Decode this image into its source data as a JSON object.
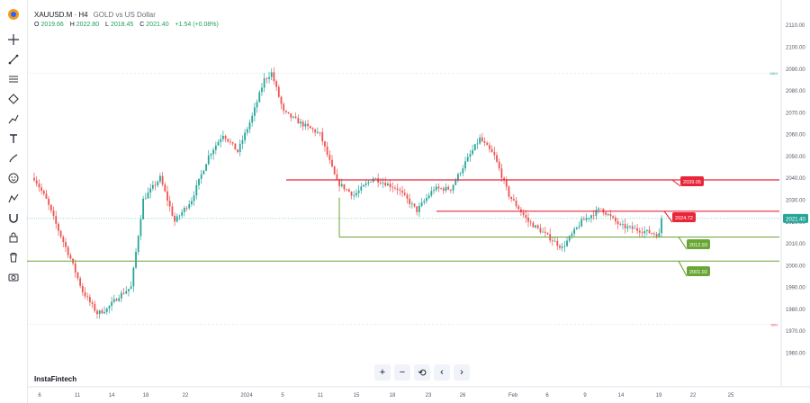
{
  "header": {
    "symbol": "XAUUSD.M · H4",
    "description": "GOLD vs US Dollar",
    "ohlc": {
      "o_label": "O",
      "o_value": "2019.66",
      "h_label": "H",
      "h_value": "2022.80",
      "l_label": "L",
      "l_value": "2018.45",
      "c_label": "C",
      "c_value": "2021.40",
      "change": "+1.54 (+0.08%)"
    }
  },
  "brand": "InstaFintech",
  "toolbar": {
    "icons": [
      "logo-icon",
      "crosshair-icon",
      "trend-line-icon",
      "fib-icon",
      "pattern-icon",
      "forecast-icon",
      "text-icon",
      "brush-icon",
      "emoji-icon",
      "measure-icon",
      "magnet-icon",
      "lock-drawing-icon",
      "trash-icon",
      "screenshot-icon"
    ]
  },
  "nav": {
    "zoom_in": "+",
    "zoom_out": "−",
    "reset": "⟲",
    "prev": "‹",
    "next": "›"
  },
  "colors": {
    "up": "#26a69a",
    "down": "#ef5350",
    "resistance": "#e8263a",
    "support": "#6aa636",
    "price": "#26a69a"
  },
  "chart_data": {
    "type": "candlestick",
    "y_ticks": [
      "2110.00",
      "2100.00",
      "2090.00",
      "2080.00",
      "2070.00",
      "2060.00",
      "2050.00",
      "2040.00",
      "2030.00",
      "2020.00",
      "2010.00",
      "2000.00",
      "1990.00",
      "1980.00",
      "1970.00",
      "1960.00"
    ],
    "ylim": [
      1960,
      2114
    ],
    "x_ticks": [
      "6",
      "11",
      "14",
      "18",
      "22",
      "2024",
      "5",
      "11",
      "15",
      "18",
      "23",
      "26",
      "Feb",
      "6",
      "9",
      "14",
      "19",
      "22",
      "25"
    ],
    "levels": [
      {
        "label": "2039.05",
        "value": 2039.05,
        "kind": "resistance"
      },
      {
        "label": "2024.72",
        "value": 2024.72,
        "kind": "resistance"
      },
      {
        "label": "2012.93",
        "value": 2012.93,
        "kind": "support"
      },
      {
        "label": "2001.92",
        "value": 2001.92,
        "kind": "support"
      }
    ],
    "current_price": {
      "label": "2021.40",
      "value": 2021.4
    },
    "max_label": "MAX",
    "max_value": 2088.0,
    "min_label": "MIN",
    "min_value": 1973.0,
    "path_points": [
      [
        0,
        2040
      ],
      [
        5,
        2030
      ],
      [
        10,
        2016
      ],
      [
        15,
        2003
      ],
      [
        20,
        1988
      ],
      [
        26,
        1978
      ],
      [
        30,
        1980
      ],
      [
        35,
        1986
      ],
      [
        40,
        1990
      ],
      [
        45,
        2030
      ],
      [
        52,
        2040
      ],
      [
        58,
        2020
      ],
      [
        65,
        2030
      ],
      [
        72,
        2050
      ],
      [
        78,
        2060
      ],
      [
        84,
        2052
      ],
      [
        90,
        2068
      ],
      [
        95,
        2085
      ],
      [
        98,
        2088
      ],
      [
        103,
        2070
      ],
      [
        110,
        2065
      ],
      [
        118,
        2060
      ],
      [
        125,
        2038
      ],
      [
        132,
        2032
      ],
      [
        140,
        2040
      ],
      [
        150,
        2035
      ],
      [
        158,
        2025
      ],
      [
        165,
        2035
      ],
      [
        172,
        2035
      ],
      [
        178,
        2047
      ],
      [
        184,
        2058
      ],
      [
        190,
        2050
      ],
      [
        196,
        2032
      ],
      [
        204,
        2020
      ],
      [
        210,
        2015
      ],
      [
        218,
        2008
      ],
      [
        226,
        2020
      ],
      [
        234,
        2026
      ],
      [
        242,
        2018
      ],
      [
        250,
        2016
      ],
      [
        258,
        2014
      ],
      [
        266,
        2018
      ],
      [
        274,
        2025
      ],
      [
        282,
        2030
      ],
      [
        290,
        2040
      ],
      [
        298,
        2050
      ],
      [
        304,
        2058
      ],
      [
        310,
        2035
      ],
      [
        318,
        2025
      ],
      [
        326,
        2022
      ],
      [
        334,
        2030
      ],
      [
        342,
        2040
      ],
      [
        350,
        2032
      ],
      [
        356,
        2025
      ],
      [
        362,
        2018
      ],
      [
        370,
        2015
      ],
      [
        378,
        2012
      ],
      [
        386,
        2010
      ],
      [
        392,
        2000
      ],
      [
        398,
        1993
      ],
      [
        404,
        1990
      ],
      [
        412,
        1993
      ],
      [
        420,
        1998
      ],
      [
        428,
        2005
      ],
      [
        434,
        2015
      ],
      [
        437,
        2021.4
      ]
    ]
  }
}
